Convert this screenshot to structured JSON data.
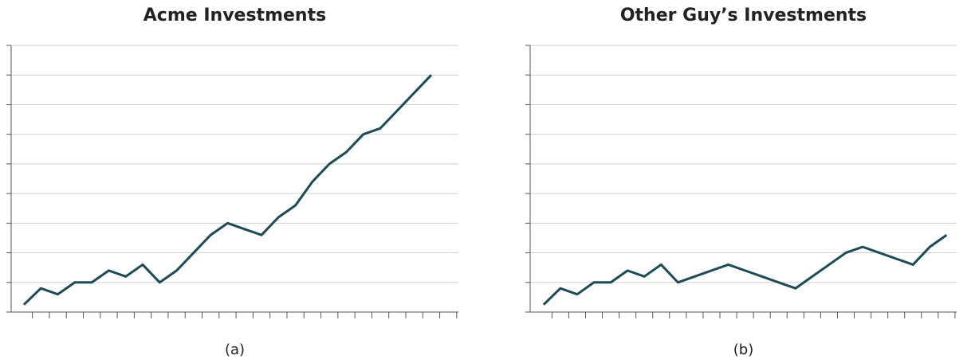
{
  "chart_data": [
    {
      "type": "line",
      "title": "Acme Investments",
      "caption": "(a)",
      "color": "#1d4a57",
      "x": [
        1,
        2,
        3,
        4,
        5,
        6,
        7,
        8,
        9,
        10,
        11,
        12,
        13,
        14,
        15,
        16,
        17,
        18,
        19,
        20,
        21,
        22,
        23,
        24,
        25
      ],
      "values": [
        0.25,
        0.8,
        0.6,
        1.0,
        1.0,
        1.4,
        1.2,
        1.6,
        1.0,
        1.4,
        2.0,
        2.6,
        3.0,
        2.8,
        2.6,
        3.2,
        3.6,
        4.4,
        5.0,
        5.4,
        6.0,
        6.2,
        6.8,
        7.4,
        8.0
      ],
      "xlim": [
        0.25,
        26.6
      ],
      "xticks": [
        1.5,
        2.5,
        3.5,
        4.5,
        5.5,
        6.5,
        7.5,
        8.5,
        9.5,
        10.5,
        11.5,
        12.5,
        13.5,
        14.5,
        15.5,
        16.5,
        17.5,
        18.5,
        19.5,
        20.5,
        21.5,
        22.5,
        23.5,
        24.5,
        25.5,
        26.5
      ],
      "ylim": [
        0,
        9
      ],
      "yticks": [
        0,
        1,
        2,
        3,
        4,
        5,
        6,
        7,
        8,
        9
      ],
      "grid": true
    },
    {
      "type": "line",
      "title": "Other Guy’s Investments",
      "caption": "(b)",
      "color": "#1d4a57",
      "x": [
        1,
        2,
        3,
        4,
        5,
        6,
        7,
        8,
        9,
        10,
        11,
        12,
        13,
        14,
        15,
        16,
        17,
        18,
        19,
        20,
        21,
        22,
        23,
        24,
        25
      ],
      "values": [
        0.25,
        0.8,
        0.6,
        1.0,
        1.0,
        1.4,
        1.2,
        1.6,
        1.0,
        1.2,
        1.4,
        1.6,
        1.4,
        1.2,
        1.0,
        0.8,
        1.2,
        1.6,
        2.0,
        2.2,
        2.0,
        1.8,
        1.6,
        2.2,
        2.6
      ],
      "xlim": [
        0.2,
        25.6
      ],
      "xticks": [
        1.5,
        2.5,
        3.5,
        4.5,
        5.5,
        6.5,
        7.5,
        8.5,
        9.5,
        10.5,
        11.5,
        12.5,
        13.5,
        14.5,
        15.5,
        16.5,
        17.5,
        18.5,
        19.5,
        20.5,
        21.5,
        22.5,
        23.5,
        24.5,
        25.5
      ],
      "ylim": [
        0,
        9
      ],
      "yticks": [
        0,
        1,
        2,
        3,
        4,
        5,
        6,
        7,
        8,
        9
      ],
      "grid": true
    }
  ]
}
